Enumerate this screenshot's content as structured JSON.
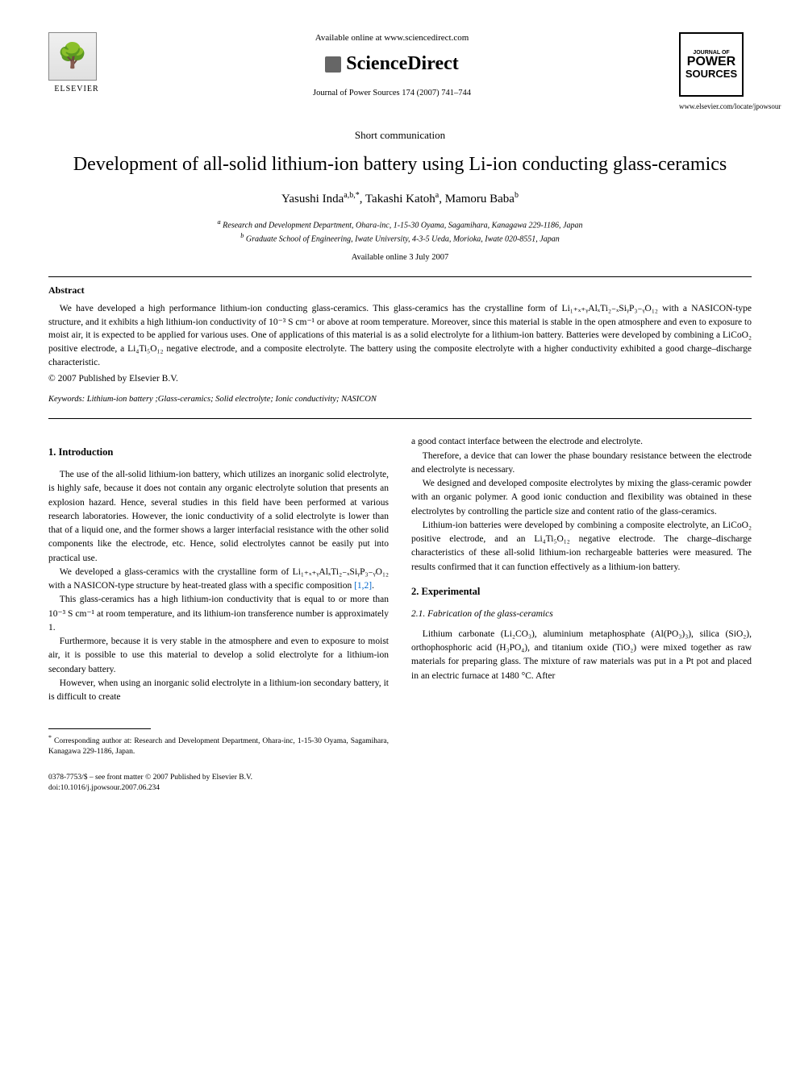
{
  "header": {
    "elsevier_label": "ELSEVIER",
    "available_online": "Available online at www.sciencedirect.com",
    "sciencedirect": "ScienceDirect",
    "journal_citation": "Journal of Power Sources 174 (2007) 741–744",
    "journal_of": "JOURNAL OF",
    "power": "POWER",
    "sources": "SOURCES",
    "journal_url": "www.elsevier.com/locate/jpowsour"
  },
  "article": {
    "type": "Short communication",
    "title": "Development of all-solid lithium-ion battery using Li-ion conducting glass-ceramics",
    "authors_html": "Yasushi Inda",
    "author1": "Yasushi Inda",
    "author1_aff": "a,b,",
    "author1_corr": "*",
    "author2": ", Takashi Katoh",
    "author2_aff": "a",
    "author3": ", Mamoru Baba",
    "author3_aff": "b",
    "affiliation_a": "Research and Development Department, Ohara-inc, 1-15-30 Oyama, Sagamihara, Kanagawa 229-1186, Japan",
    "affiliation_b": "Graduate School of Engineering, Iwate University, 4-3-5 Ueda, Morioka, Iwate 020-8551, Japan",
    "pub_date": "Available online 3 July 2007"
  },
  "abstract": {
    "label": "Abstract",
    "text": "We have developed a high performance lithium-ion conducting glass-ceramics. This glass-ceramics has the crystalline form of Li₁₊ₓ₊ᵧAlₓTi₂₋ₓSiᵧP₃₋ᵧO₁₂ with a NASICON-type structure, and it exhibits a high lithium-ion conductivity of 10⁻³ S cm⁻¹ or above at room temperature. Moreover, since this material is stable in the open atmosphere and even to exposure to moist air, it is expected to be applied for various uses. One of applications of this material is as a solid electrolyte for a lithium-ion battery. Batteries were developed by combining a LiCoO₂ positive electrode, a Li₄Ti₅O₁₂ negative electrode, and a composite electrolyte. The battery using the composite electrolyte with a higher conductivity exhibited a good charge–discharge characteristic.",
    "copyright": "© 2007 Published by Elsevier B.V."
  },
  "keywords": {
    "label": "Keywords:",
    "text": "Lithium-ion battery ;Glass-ceramics; Solid electrolyte; Ionic conductivity; NASICON"
  },
  "body": {
    "section1_title": "1. Introduction",
    "p1": "The use of the all-solid lithium-ion battery, which utilizes an inorganic solid electrolyte, is highly safe, because it does not contain any organic electrolyte solution that presents an explosion hazard. Hence, several studies in this field have been performed at various research laboratories. However, the ionic conductivity of a solid electrolyte is lower than that of a liquid one, and the former shows a larger interfacial resistance with the other solid components like the electrode, etc. Hence, solid electrolytes cannot be easily put into practical use.",
    "p2a": "We developed a glass-ceramics with the crystalline form of Li₁₊ₓ₊ᵧAlₓTi₂₋ₓSiᵧP₃₋ᵧO₁₂ with a NASICON-type structure by heat-treated glass with a specific composition ",
    "p2_ref": "[1,2]",
    "p2b": ".",
    "p3": "This glass-ceramics has a high lithium-ion conductivity that is equal to or more than 10⁻³ S cm⁻¹ at room temperature, and its lithium-ion transference number is approximately 1.",
    "p4": "Furthermore, because it is very stable in the atmosphere and even to exposure to moist air, it is possible to use this material to develop a solid electrolyte for a lithium-ion secondary battery.",
    "p5": "However, when using an inorganic solid electrolyte in a lithium-ion secondary battery, it is difficult to create",
    "p6": "a good contact interface between the electrode and electrolyte.",
    "p7": "Therefore, a device that can lower the phase boundary resistance between the electrode and electrolyte is necessary.",
    "p8": "We designed and developed composite electrolytes by mixing the glass-ceramic powder with an organic polymer. A good ionic conduction and flexibility was obtained in these electrolytes by controlling the particle size and content ratio of the glass-ceramics.",
    "p9": "Lithium-ion batteries were developed by combining a composite electrolyte, an LiCoO₂ positive electrode, and an Li₄Ti₅O₁₂ negative electrode. The charge–discharge characteristics of these all-solid lithium-ion rechargeable batteries were measured. The results confirmed that it can function effectively as a lithium-ion battery.",
    "section2_title": "2. Experimental",
    "section21_title": "2.1. Fabrication of the glass-ceramics",
    "p10": "Lithium carbonate (Li₂CO₃), aluminium metaphosphate (Al(PO₃)₃), silica (SiO₂), orthophosphoric acid (H₃PO₄), and titanium oxide (TiO₂) were mixed together as raw materials for preparing glass. The mixture of raw materials was put in a Pt pot and placed in an electric furnace at 1480 °C. After"
  },
  "footnote": {
    "marker": "*",
    "text": "Corresponding author at: Research and Development Department, Ohara-inc, 1-15-30 Oyama, Sagamihara, Kanagawa 229-1186, Japan."
  },
  "footer": {
    "line1": "0378-7753/$ – see front matter © 2007 Published by Elsevier B.V.",
    "line2": "doi:10.1016/j.jpowsour.2007.06.234"
  },
  "colors": {
    "text": "#000000",
    "link": "#0066cc",
    "background": "#ffffff"
  }
}
